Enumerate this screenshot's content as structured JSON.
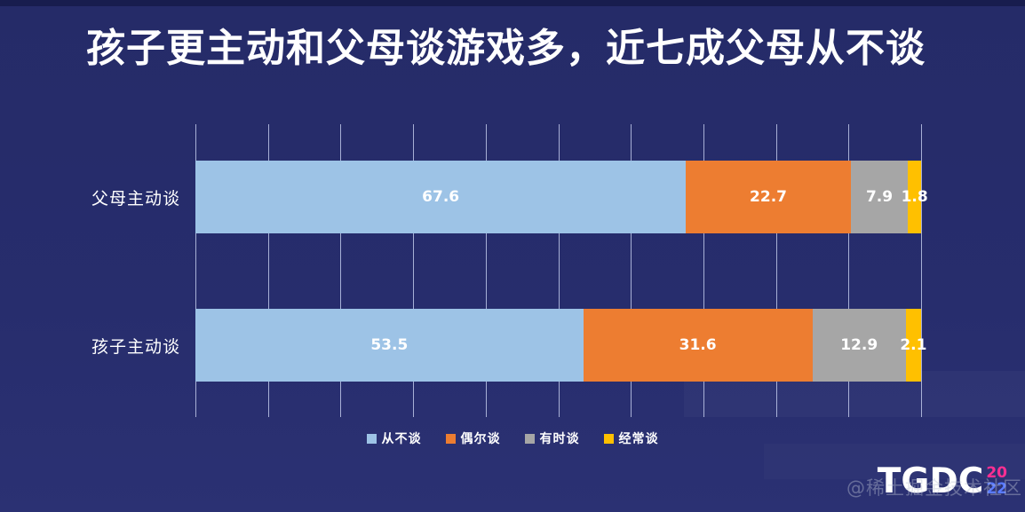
{
  "title": "孩子更主动和父母谈游戏多，近七成父母从不谈",
  "chart_data": {
    "type": "bar",
    "orientation": "horizontal",
    "stacked": true,
    "categories": [
      "父母主动谈",
      "孩子主动谈"
    ],
    "series": [
      {
        "name": "从不谈",
        "color": "#9dc3e6",
        "values": [
          67.6,
          53.5
        ]
      },
      {
        "name": "偶尔谈",
        "color": "#ed7d31",
        "values": [
          22.7,
          31.6
        ]
      },
      {
        "name": "有时谈",
        "color": "#a6a6a6",
        "values": [
          7.9,
          12.9
        ]
      },
      {
        "name": "经常谈",
        "color": "#ffc000",
        "values": [
          1.8,
          2.1
        ]
      }
    ],
    "xlim": [
      0,
      100
    ],
    "grid": true,
    "gridline_count": 11,
    "legend_position": "bottom",
    "value_labels": true
  },
  "branding": {
    "logo_text": "TGDC",
    "logo_year_line1": "20",
    "logo_year_line2": "22",
    "logo_year_color1": "#ff2f92",
    "logo_year_color2": "#5a7bff"
  },
  "watermark": "@稀土掘金技术社区",
  "colors": {
    "background": "#272d6d",
    "title_text": "#ffffff",
    "gridline": "#c8d1f0",
    "bar_label_text": "#ffffff"
  }
}
